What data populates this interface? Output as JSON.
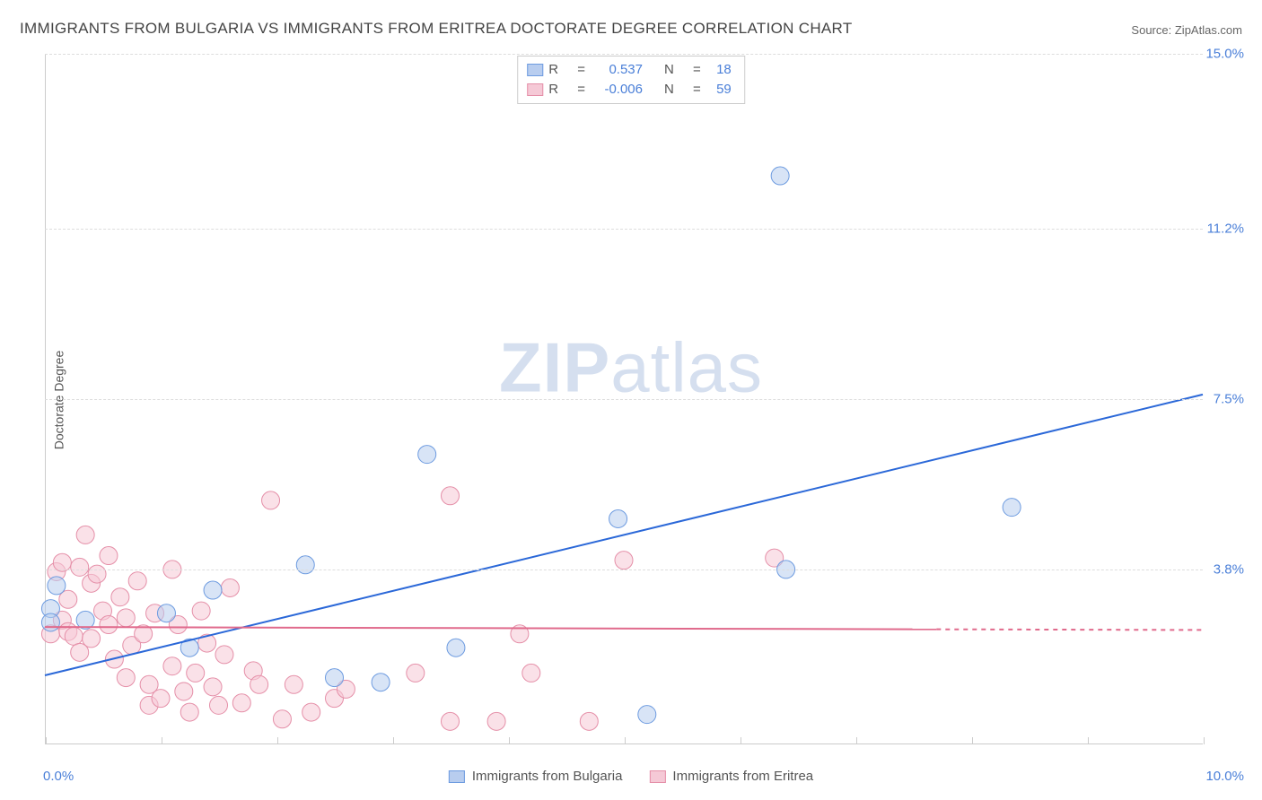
{
  "title": "IMMIGRANTS FROM BULGARIA VS IMMIGRANTS FROM ERITREA DOCTORATE DEGREE CORRELATION CHART",
  "source_label": "Source:",
  "source_value": "ZipAtlas.com",
  "ylabel": "Doctorate Degree",
  "watermark_a": "ZIP",
  "watermark_b": "atlas",
  "chart": {
    "type": "scatter",
    "xlim": [
      0.0,
      10.0
    ],
    "ylim": [
      0.0,
      15.0
    ],
    "x_tick_labels": [
      "0.0%",
      "10.0%"
    ],
    "y_tick_labels": [
      "3.8%",
      "7.5%",
      "11.2%",
      "15.0%"
    ],
    "y_tick_values": [
      3.8,
      7.5,
      11.2,
      15.0
    ],
    "x_minor_ticks": [
      0.0,
      1.0,
      2.0,
      3.0,
      4.0,
      5.0,
      6.0,
      7.0,
      8.0,
      9.0,
      10.0
    ],
    "grid_color": "#dddddd",
    "axis_color": "#cccccc",
    "background_color": "#ffffff",
    "marker_radius": 10,
    "marker_opacity": 0.55,
    "line_width": 2,
    "series": [
      {
        "name": "Immigrants from Bulgaria",
        "color_fill": "#b8cdef",
        "color_stroke": "#6d9be0",
        "line_color": "#2b68d8",
        "R": "0.537",
        "N": "18",
        "trend": {
          "x1": 0.0,
          "y1": 1.5,
          "x2": 10.0,
          "y2": 7.6,
          "dashed_from": 10.0
        },
        "points": [
          [
            0.05,
            2.95
          ],
          [
            0.05,
            2.65
          ],
          [
            0.1,
            3.45
          ],
          [
            0.35,
            2.7
          ],
          [
            1.05,
            2.85
          ],
          [
            1.45,
            3.35
          ],
          [
            1.25,
            2.1
          ],
          [
            2.25,
            3.9
          ],
          [
            2.5,
            1.45
          ],
          [
            2.9,
            1.35
          ],
          [
            3.3,
            6.3
          ],
          [
            3.55,
            2.1
          ],
          [
            4.95,
            4.9
          ],
          [
            5.2,
            0.65
          ],
          [
            6.35,
            12.35
          ],
          [
            6.4,
            3.8
          ],
          [
            8.35,
            5.15
          ]
        ]
      },
      {
        "name": "Immigrants from Eritrea",
        "color_fill": "#f5c9d6",
        "color_stroke": "#e58fa8",
        "line_color": "#e06a8c",
        "R": "-0.006",
        "N": "59",
        "trend": {
          "x1": 0.0,
          "y1": 2.55,
          "x2": 7.7,
          "y2": 2.5,
          "dashed_from": 7.7
        },
        "points": [
          [
            0.05,
            2.4
          ],
          [
            0.1,
            3.75
          ],
          [
            0.15,
            3.95
          ],
          [
            0.15,
            2.7
          ],
          [
            0.2,
            2.45
          ],
          [
            0.2,
            3.15
          ],
          [
            0.25,
            2.35
          ],
          [
            0.3,
            3.85
          ],
          [
            0.3,
            2.0
          ],
          [
            0.35,
            4.55
          ],
          [
            0.4,
            3.5
          ],
          [
            0.4,
            2.3
          ],
          [
            0.45,
            3.7
          ],
          [
            0.5,
            2.9
          ],
          [
            0.55,
            4.1
          ],
          [
            0.55,
            2.6
          ],
          [
            0.6,
            1.85
          ],
          [
            0.65,
            3.2
          ],
          [
            0.7,
            2.75
          ],
          [
            0.7,
            1.45
          ],
          [
            0.75,
            2.15
          ],
          [
            0.8,
            3.55
          ],
          [
            0.85,
            2.4
          ],
          [
            0.9,
            1.3
          ],
          [
            0.9,
            0.85
          ],
          [
            0.95,
            2.85
          ],
          [
            1.0,
            1.0
          ],
          [
            1.1,
            1.7
          ],
          [
            1.1,
            3.8
          ],
          [
            1.15,
            2.6
          ],
          [
            1.2,
            1.15
          ],
          [
            1.25,
            0.7
          ],
          [
            1.3,
            1.55
          ],
          [
            1.35,
            2.9
          ],
          [
            1.4,
            2.2
          ],
          [
            1.45,
            1.25
          ],
          [
            1.5,
            0.85
          ],
          [
            1.55,
            1.95
          ],
          [
            1.6,
            3.4
          ],
          [
            1.7,
            0.9
          ],
          [
            1.8,
            1.6
          ],
          [
            1.85,
            1.3
          ],
          [
            1.95,
            5.3
          ],
          [
            2.05,
            0.55
          ],
          [
            2.15,
            1.3
          ],
          [
            2.3,
            0.7
          ],
          [
            2.5,
            1.0
          ],
          [
            2.6,
            1.2
          ],
          [
            3.2,
            1.55
          ],
          [
            3.5,
            5.4
          ],
          [
            3.5,
            0.5
          ],
          [
            3.9,
            0.5
          ],
          [
            4.2,
            1.55
          ],
          [
            4.7,
            0.5
          ],
          [
            5.0,
            4.0
          ],
          [
            6.3,
            4.05
          ],
          [
            4.1,
            2.4
          ]
        ]
      }
    ]
  },
  "legend_labels": {
    "R": "R",
    "N": "N",
    "eq": "="
  }
}
